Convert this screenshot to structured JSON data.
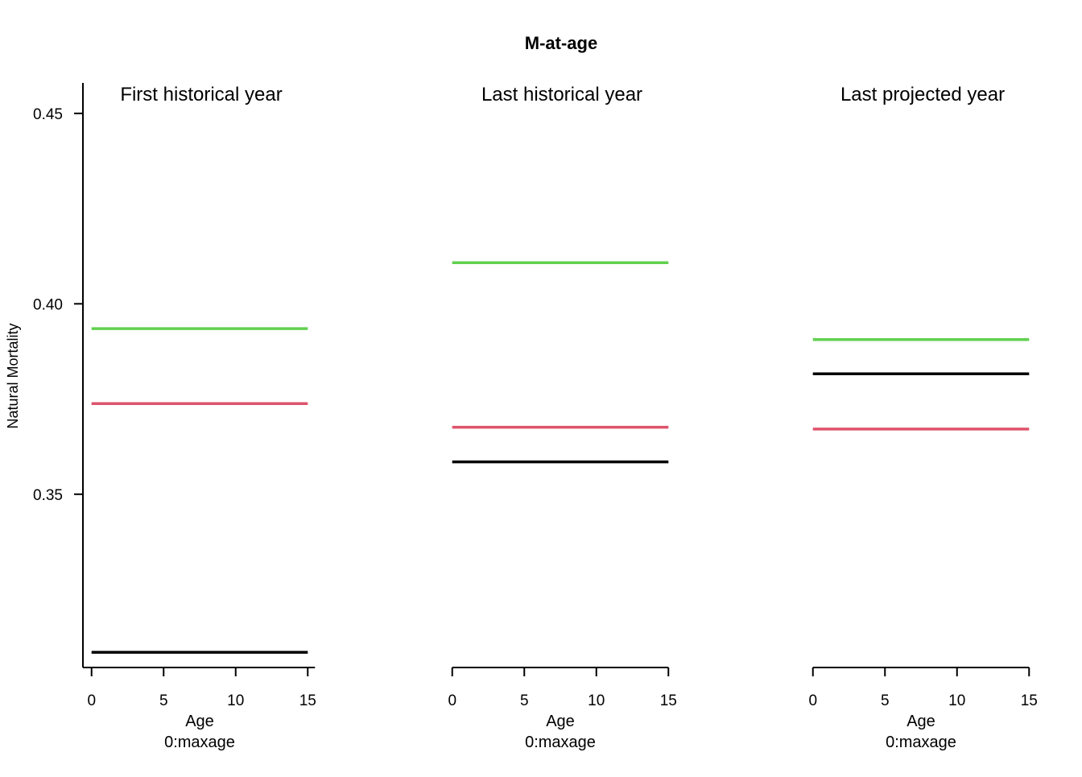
{
  "chart_data": {
    "type": "line",
    "title": "M-at-age",
    "ylabel": "Natural Mortality",
    "ylim": [
      0.3045,
      0.458
    ],
    "yticks": [
      "0.35",
      "0.40",
      "0.45"
    ],
    "ytick_values": [
      0.35,
      0.4,
      0.45
    ],
    "xlim": [
      -0.6,
      15.6
    ],
    "xticks": [
      "0",
      "5",
      "10",
      "15"
    ],
    "xtick_values": [
      0,
      5,
      10,
      15
    ],
    "grid": false,
    "series_colors": [
      "#000000",
      "#DF536B",
      "#61D04F"
    ],
    "panels": [
      {
        "title": "First historical year",
        "xlabel": "Age",
        "xsublabel": "0:maxage",
        "series": [
          {
            "color": "#000000",
            "x": [
              0,
              15
            ],
            "y": [
              0.3085,
              0.3085
            ]
          },
          {
            "color": "#DF536B",
            "x": [
              0,
              15
            ],
            "y": [
              0.3738,
              0.3738
            ]
          },
          {
            "color": "#61D04F",
            "x": [
              0,
              15
            ],
            "y": [
              0.3935,
              0.3935
            ]
          }
        ]
      },
      {
        "title": "Last historical year",
        "xlabel": "Age",
        "xsublabel": "0:maxage",
        "series": [
          {
            "color": "#000000",
            "x": [
              0,
              15
            ],
            "y": [
              0.3585,
              0.3585
            ]
          },
          {
            "color": "#DF536B",
            "x": [
              0,
              15
            ],
            "y": [
              0.3676,
              0.3676
            ]
          },
          {
            "color": "#61D04F",
            "x": [
              0,
              15
            ],
            "y": [
              0.4108,
              0.4108
            ]
          }
        ]
      },
      {
        "title": "Last projected year",
        "xlabel": "Age",
        "xsublabel": "0:maxage",
        "series": [
          {
            "color": "#000000",
            "x": [
              0,
              15
            ],
            "y": [
              0.3816,
              0.3816
            ]
          },
          {
            "color": "#DF536B",
            "x": [
              0,
              15
            ],
            "y": [
              0.3671,
              0.3671
            ]
          },
          {
            "color": "#61D04F",
            "x": [
              0,
              15
            ],
            "y": [
              0.3906,
              0.3906
            ]
          }
        ]
      }
    ]
  }
}
